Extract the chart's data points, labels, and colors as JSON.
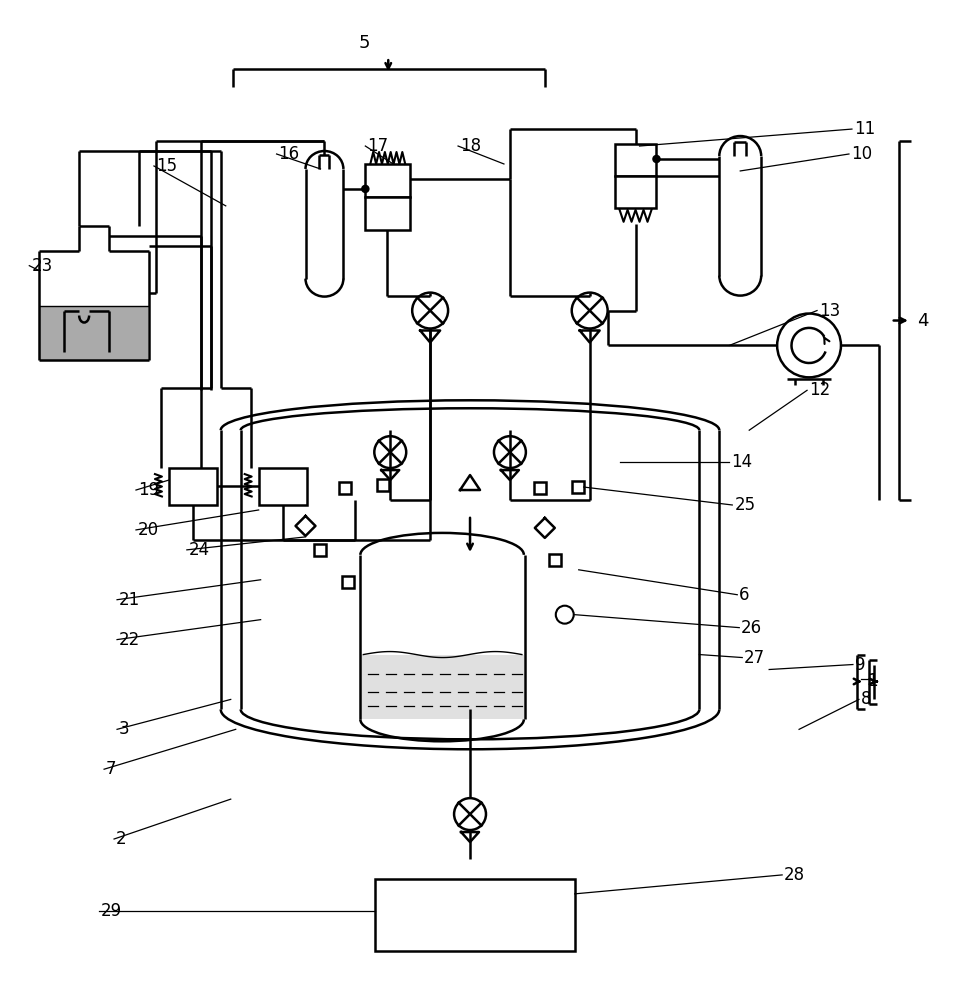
{
  "bg_color": "#ffffff",
  "line_color": "#000000",
  "lw": 1.8,
  "thin": 0.9
}
